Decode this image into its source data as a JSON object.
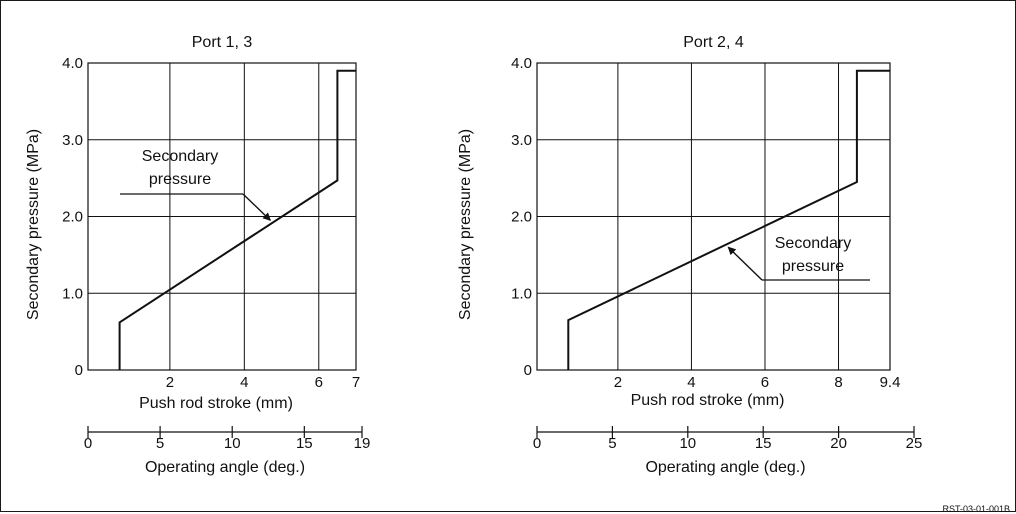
{
  "figure_code": "RST-03-01-001B",
  "chart_data": [
    {
      "type": "line",
      "title": "Port 1, 3",
      "ylabel": "Secondary pressure (MPa)",
      "xlabel": "Push rod stroke (mm)",
      "secondary_xlabel": "Operating angle (deg.)",
      "ylim": [
        0,
        4.0
      ],
      "xlim": [
        -0.2,
        7
      ],
      "yticks": [
        {
          "v": 0,
          "label": "0"
        },
        {
          "v": 1.0,
          "label": "1.0"
        },
        {
          "v": 2.0,
          "label": "2.0"
        },
        {
          "v": 3.0,
          "label": "3.0"
        },
        {
          "v": 4.0,
          "label": "4.0"
        }
      ],
      "xticks": [
        {
          "v": 2,
          "label": "2"
        },
        {
          "v": 4,
          "label": "4"
        },
        {
          "v": 6,
          "label": "6"
        },
        {
          "v": 7,
          "label": "7"
        }
      ],
      "x_gridlines": [
        2,
        4,
        6
      ],
      "secondary_ticks": [
        {
          "v": 0,
          "label": "0"
        },
        {
          "v": 5,
          "label": "5"
        },
        {
          "v": 10,
          "label": "10"
        },
        {
          "v": 15,
          "label": "15"
        },
        {
          "v": 19,
          "label": "19"
        }
      ],
      "secondary_lim": [
        0,
        19
      ],
      "series": [
        {
          "x": [
            0.65,
            0.65,
            6.5,
            6.5,
            7.0
          ],
          "y": [
            0,
            0.62,
            2.47,
            3.9,
            3.9
          ]
        }
      ],
      "annotation": {
        "lines": [
          "Secondary",
          "pressure"
        ],
        "arrow_to": {
          "x": 4.7,
          "y": 1.95
        }
      }
    },
    {
      "type": "line",
      "title": "Port 2, 4",
      "ylabel": "Secondary pressure (MPa)",
      "xlabel": "Push rod stroke (mm)",
      "secondary_xlabel": "Operating angle (deg.)",
      "ylim": [
        0,
        4.0
      ],
      "xlim": [
        -0.2,
        9.4
      ],
      "yticks": [
        {
          "v": 0,
          "label": "0"
        },
        {
          "v": 1.0,
          "label": "1.0"
        },
        {
          "v": 2.0,
          "label": "2.0"
        },
        {
          "v": 3.0,
          "label": "3.0"
        },
        {
          "v": 4.0,
          "label": "4.0"
        }
      ],
      "xticks": [
        {
          "v": 2,
          "label": "2"
        },
        {
          "v": 4,
          "label": "4"
        },
        {
          "v": 6,
          "label": "6"
        },
        {
          "v": 8,
          "label": "8"
        },
        {
          "v": 9.4,
          "label": "9.4"
        }
      ],
      "x_gridlines": [
        2,
        4,
        6,
        8
      ],
      "secondary_ticks": [
        {
          "v": 0,
          "label": "0"
        },
        {
          "v": 5,
          "label": "5"
        },
        {
          "v": 10,
          "label": "10"
        },
        {
          "v": 15,
          "label": "15"
        },
        {
          "v": 20,
          "label": "20"
        },
        {
          "v": 25,
          "label": "25"
        }
      ],
      "secondary_lim": [
        0,
        25
      ],
      "series": [
        {
          "x": [
            0.65,
            0.65,
            8.5,
            8.5,
            9.4
          ],
          "y": [
            0,
            0.65,
            2.45,
            3.9,
            3.9
          ]
        }
      ],
      "annotation": {
        "lines": [
          "Secondary",
          "pressure"
        ],
        "arrow_to": {
          "x": 5.0,
          "y": 1.6
        }
      }
    }
  ]
}
